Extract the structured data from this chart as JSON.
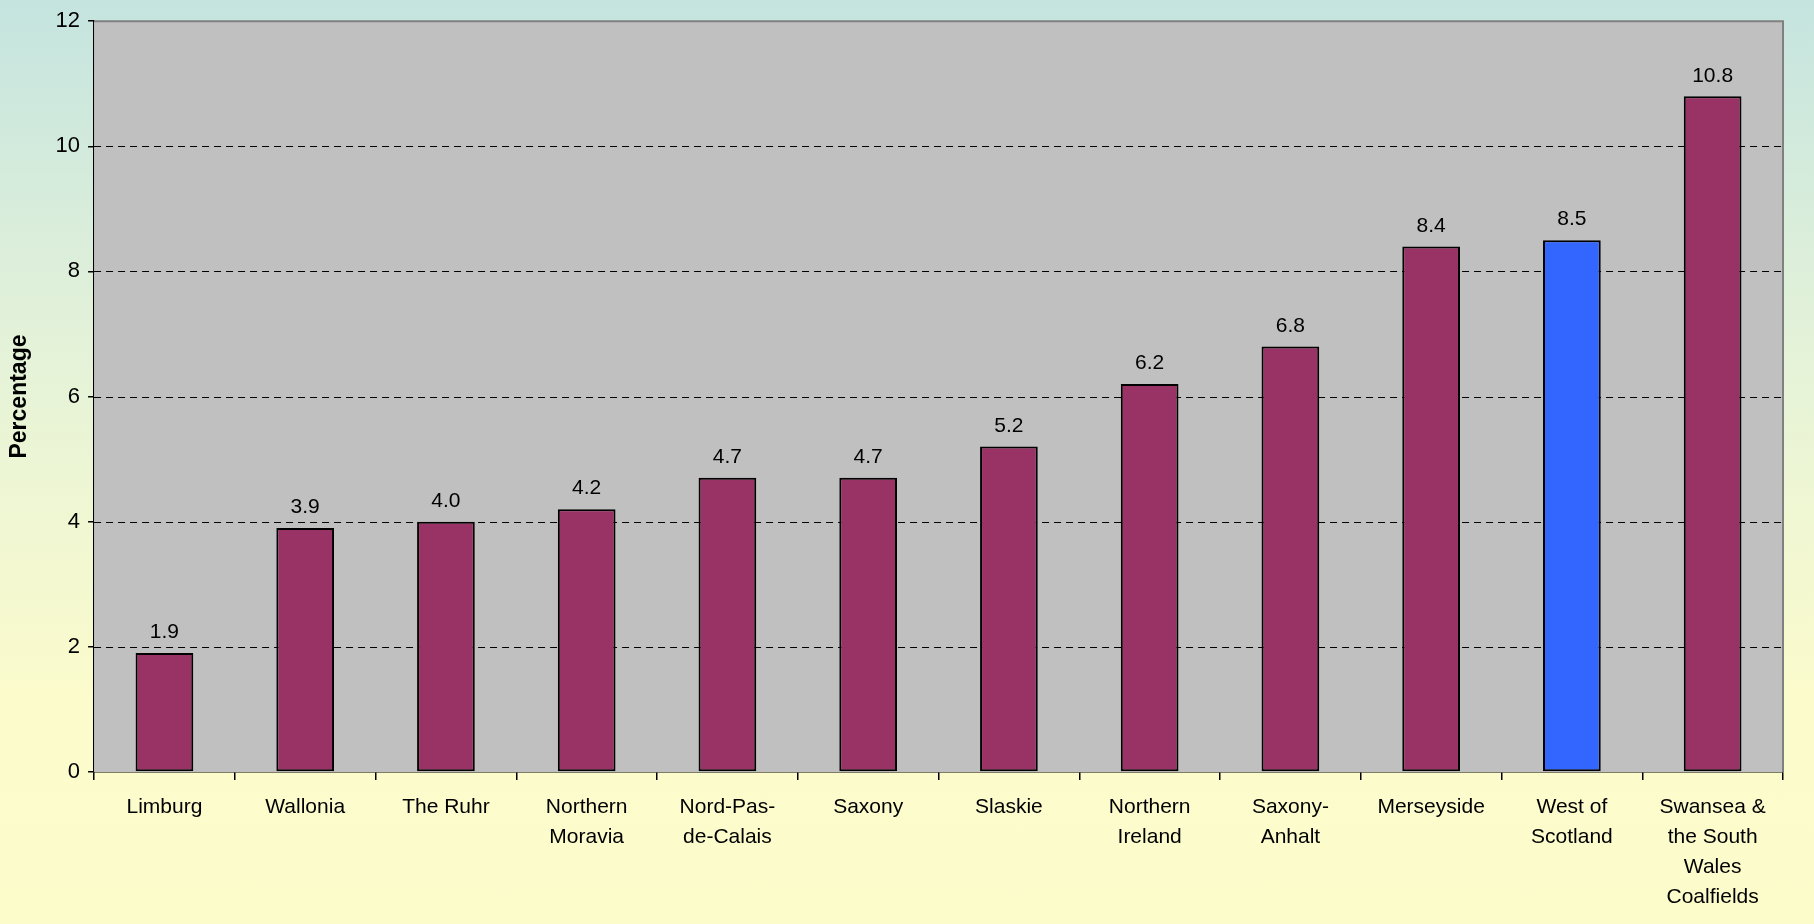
{
  "chart_data": {
    "type": "bar",
    "ylabel": "Percentage",
    "categories": [
      "Limburg",
      "Wallonia",
      "The Ruhr",
      "Northern Moravia",
      "Nord-Pas-de-Calais",
      "Saxony",
      "Slaskie",
      "Northern Ireland",
      "Saxony-Anhalt",
      "Merseyside",
      "West of Scotland",
      "Swansea & the South Wales Coalfields"
    ],
    "values": [
      1.9,
      3.9,
      4.0,
      4.2,
      4.7,
      4.7,
      5.2,
      6.2,
      6.8,
      8.4,
      8.5,
      10.8
    ],
    "value_labels": [
      "1.9",
      "3.9",
      "4.0",
      "4.2",
      "4.7",
      "4.7",
      "5.2",
      "6.2",
      "6.8",
      "8.4",
      "8.5",
      "10.8"
    ],
    "colors": [
      "#993366",
      "#993366",
      "#993366",
      "#993366",
      "#993366",
      "#993366",
      "#993366",
      "#993366",
      "#993366",
      "#993366",
      "#3366ff",
      "#993366"
    ],
    "ylim": [
      0,
      12
    ],
    "yticks": [
      0,
      2,
      4,
      6,
      8,
      10,
      12
    ],
    "grid": "y"
  }
}
